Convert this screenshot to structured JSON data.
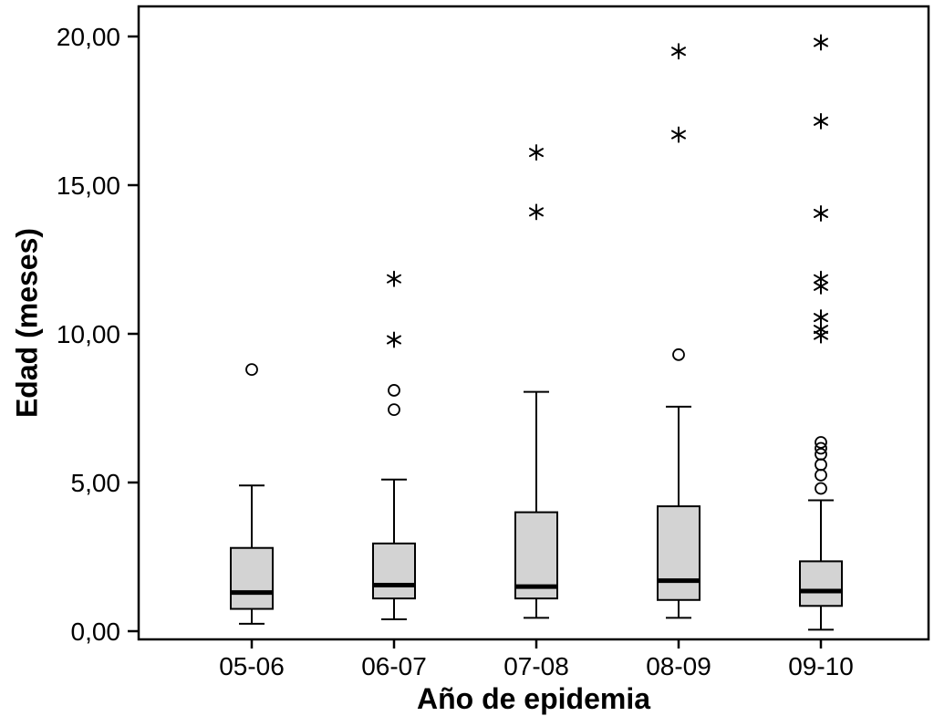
{
  "chart_data": {
    "type": "boxplot",
    "title": "",
    "xlabel": "Año de epidemia",
    "ylabel": "Edad (meses)",
    "ylim": [
      0,
      20.5
    ],
    "grid": false,
    "legend_position": "none",
    "yticks": [
      {
        "value": 0,
        "label": "0,00"
      },
      {
        "value": 5,
        "label": "5,00"
      },
      {
        "value": 10,
        "label": "10,00"
      },
      {
        "value": 15,
        "label": "15,00"
      },
      {
        "value": 20,
        "label": "20,00"
      }
    ],
    "categories": [
      "05-06",
      "06-07",
      "07-08",
      "08-09",
      "09-10"
    ],
    "marker_meaning": {
      "circle": "outlier",
      "asterisk": "extreme-value"
    },
    "box_fill": "#d3d3d3",
    "stroke_color": "#000000",
    "boxes": [
      {
        "category": "05-06",
        "whisker_low": 0.25,
        "q1": 0.75,
        "median": 1.3,
        "q3": 2.8,
        "whisker_high": 4.9,
        "outliers": [
          8.8
        ],
        "extremes": []
      },
      {
        "category": "06-07",
        "whisker_low": 0.4,
        "q1": 1.1,
        "median": 1.55,
        "q3": 2.95,
        "whisker_high": 5.1,
        "outliers": [
          7.45,
          8.1
        ],
        "extremes": [
          9.8,
          11.85
        ]
      },
      {
        "category": "07-08",
        "whisker_low": 0.45,
        "q1": 1.1,
        "median": 1.5,
        "q3": 4.0,
        "whisker_high": 8.05,
        "outliers": [],
        "extremes": [
          14.1,
          16.1
        ]
      },
      {
        "category": "08-09",
        "whisker_low": 0.45,
        "q1": 1.05,
        "median": 1.7,
        "q3": 4.2,
        "whisker_high": 7.55,
        "outliers": [
          9.3
        ],
        "extremes": [
          16.7,
          19.5
        ]
      },
      {
        "category": "09-10",
        "whisker_low": 0.05,
        "q1": 0.85,
        "median": 1.35,
        "q3": 2.35,
        "whisker_high": 4.4,
        "outliers": [
          4.8,
          5.25,
          5.6,
          5.95,
          6.15,
          6.35
        ],
        "extremes": [
          9.95,
          10.15,
          10.55,
          11.6,
          11.85,
          14.05,
          17.15,
          19.8
        ]
      }
    ]
  }
}
